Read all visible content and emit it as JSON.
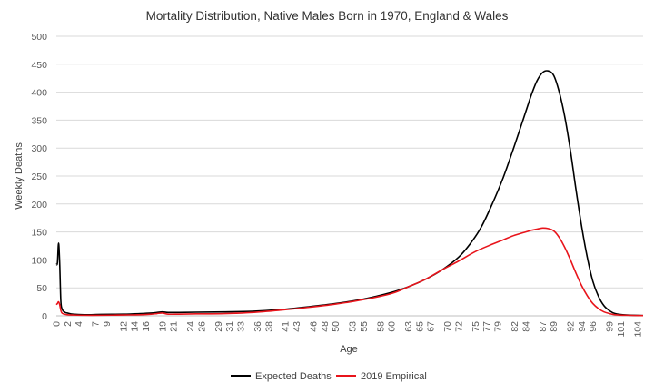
{
  "chart_data": {
    "type": "line",
    "title": "Mortality Distribution, Native Males Born in 1970, England & Wales",
    "xlabel": "Age",
    "ylabel": "Weekly Deaths",
    "xlim": [
      0,
      105
    ],
    "ylim": [
      0,
      500
    ],
    "yticks": [
      0,
      50,
      100,
      150,
      200,
      250,
      300,
      350,
      400,
      450,
      500
    ],
    "xtick_labels": [
      "0",
      "2",
      "4",
      "7",
      "9",
      "12",
      "14",
      "16",
      "19",
      "21",
      "24",
      "26",
      "29",
      "31",
      "33",
      "36",
      "38",
      "41",
      "43",
      "46",
      "48",
      "50",
      "53",
      "55",
      "58",
      "60",
      "63",
      "65",
      "67",
      "70",
      "72",
      "75",
      "77",
      "79",
      "82",
      "84",
      "87",
      "89",
      "92",
      "94",
      "96",
      "99",
      "101",
      "104"
    ],
    "grid": true,
    "legend_position": "bottom",
    "series": [
      {
        "name": "Expected Deaths",
        "color": "#000000",
        "x": [
          0,
          0.2,
          0.4,
          0.6,
          0.8,
          1.0,
          1.3,
          1.6,
          2,
          3,
          5,
          8,
          12,
          15,
          17,
          18,
          19,
          20,
          22,
          25,
          30,
          35,
          40,
          45,
          50,
          55,
          60,
          63,
          66,
          69,
          72,
          74,
          76,
          78,
          80,
          82,
          84,
          85,
          86,
          87,
          88,
          89,
          90,
          91,
          92,
          93,
          94,
          95,
          96,
          97,
          98,
          99,
          100,
          102,
          105
        ],
        "y": [
          92,
          95,
          130,
          95,
          28,
          13,
          8,
          6,
          5,
          3,
          2,
          2.5,
          3,
          4,
          5,
          6,
          7,
          6,
          6,
          6.5,
          7,
          8,
          11,
          16,
          22,
          30,
          42,
          52,
          65,
          82,
          105,
          128,
          158,
          200,
          248,
          305,
          365,
          395,
          420,
          435,
          438,
          430,
          400,
          355,
          295,
          225,
          160,
          105,
          62,
          35,
          18,
          9,
          4,
          1.5,
          0.5
        ]
      },
      {
        "name": "2019 Empirical",
        "color": "#e8141b",
        "x": [
          0,
          0.2,
          0.4,
          0.6,
          0.8,
          1.0,
          1.4,
          2,
          3,
          5,
          8,
          12,
          15,
          17,
          18,
          19,
          20,
          22,
          25,
          30,
          35,
          40,
          45,
          50,
          55,
          60,
          63,
          66,
          69,
          72,
          75,
          78,
          80,
          82,
          84,
          85,
          86,
          87,
          88,
          89,
          90,
          91,
          92,
          93,
          94,
          95,
          96,
          97,
          98,
          99,
          100,
          102,
          105
        ],
        "y": [
          20,
          22,
          25,
          20,
          10,
          5,
          3,
          2,
          1.5,
          1,
          1,
          1.5,
          2,
          3,
          4,
          5,
          3,
          3,
          3.5,
          4,
          6,
          10,
          15,
          21,
          29,
          40,
          52,
          65,
          82,
          98,
          115,
          128,
          136,
          144,
          150,
          153,
          155,
          157,
          156,
          152,
          140,
          122,
          100,
          76,
          54,
          36,
          22,
          13,
          7,
          4,
          2,
          1,
          0.5
        ]
      }
    ]
  }
}
